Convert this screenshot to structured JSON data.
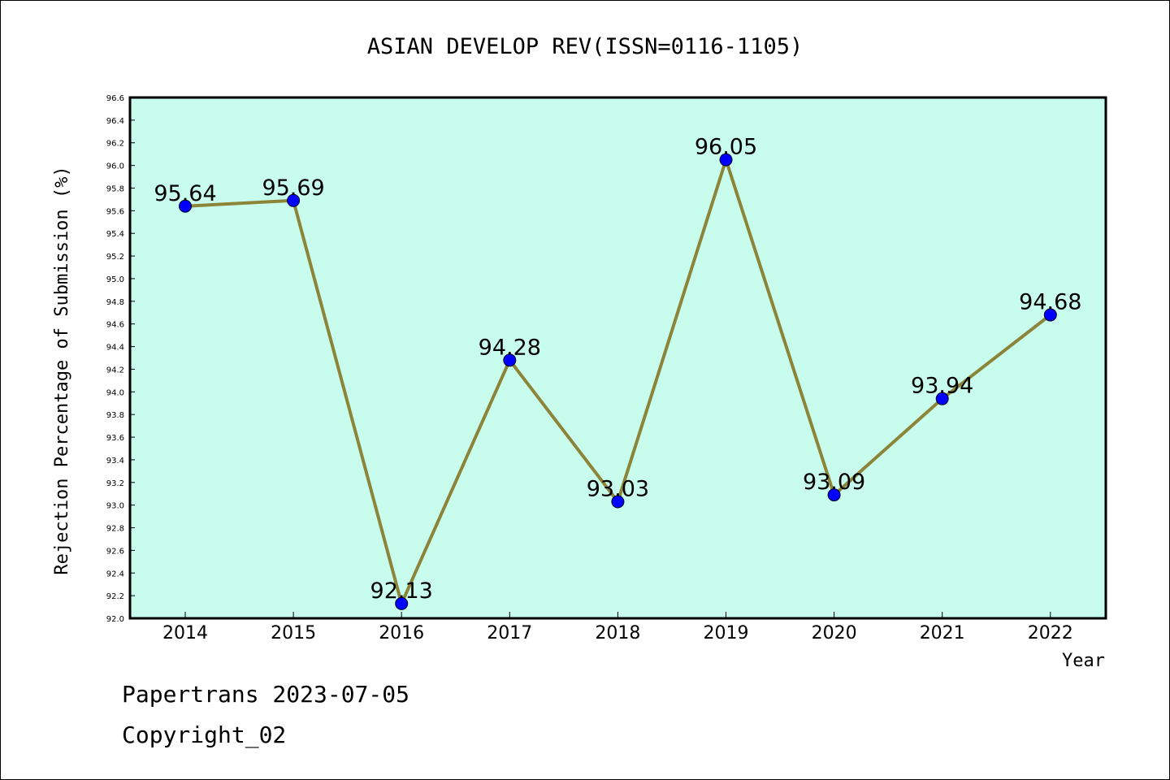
{
  "chart_data": {
    "type": "line",
    "title": "ASIAN DEVELOP REV(ISSN=0116-1105)",
    "xlabel": "Year",
    "ylabel": "Rejection Percentage of Submission (%)",
    "categories": [
      "2014",
      "2015",
      "2016",
      "2017",
      "2018",
      "2019",
      "2020",
      "2021",
      "2022"
    ],
    "values": [
      95.64,
      95.69,
      92.13,
      94.28,
      93.03,
      96.05,
      93.09,
      93.94,
      94.68
    ],
    "data_labels": [
      "95.64",
      "95.69",
      "92.13",
      "94.28",
      "93.03",
      "96.05",
      "93.09",
      "93.94",
      "94.68"
    ],
    "ylim": [
      92.0,
      96.6
    ],
    "yticks": [
      "92.0",
      "92.2",
      "92.4",
      "92.6",
      "92.8",
      "93.0",
      "93.2",
      "93.4",
      "93.6",
      "93.8",
      "94.0",
      "94.2",
      "94.4",
      "94.6",
      "94.8",
      "95.0",
      "95.2",
      "95.4",
      "95.6",
      "95.8",
      "96.0",
      "96.2",
      "96.4",
      "96.6"
    ],
    "grid": false,
    "colors": {
      "plot_background": "#c8fcec",
      "line": "#8b8439",
      "marker": "#0000ff"
    }
  },
  "footer": {
    "line1": "Papertrans 2023-07-05",
    "line2": "Copyright_02"
  }
}
